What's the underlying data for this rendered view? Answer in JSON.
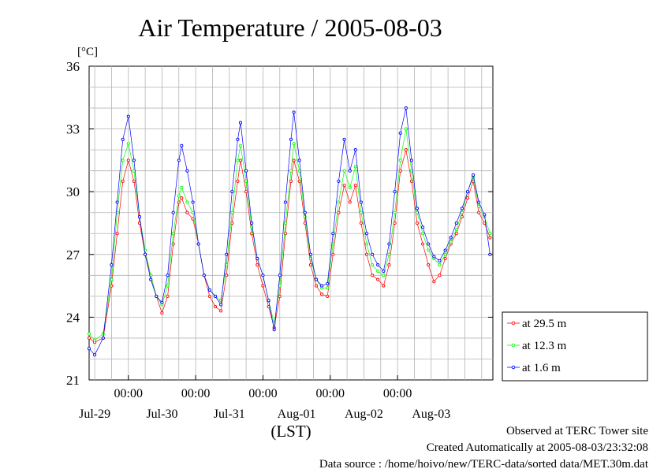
{
  "chart_data": {
    "type": "line",
    "title": "Air Temperature / 2005-08-03",
    "ylabel": "[°C]",
    "xlabel": "(LST)",
    "ylim": [
      21,
      36
    ],
    "yticks": [
      21,
      24,
      27,
      30,
      33,
      36
    ],
    "grid": true,
    "x_unit": "hours since 2005-07-28 00:00 LST",
    "xlim": [
      10,
      154
    ],
    "time_tick_labels": [
      "00:00",
      "00:00",
      "00:00",
      "00:00",
      "00:00"
    ],
    "time_ticks": [
      24,
      48,
      72,
      96,
      120
    ],
    "date_labels": [
      "Jul-29",
      "Jul-30",
      "Jul-31",
      "Aug-01",
      "Aug-02",
      "Aug-03"
    ],
    "date_label_positions": [
      12,
      12,
      12,
      12,
      12,
      12
    ],
    "legend_position": "right",
    "series": [
      {
        "name": "at 29.5 m",
        "color": "#ff0000",
        "points": [
          [
            10,
            23.0
          ],
          [
            12,
            22.8
          ],
          [
            15,
            23.0
          ],
          [
            18,
            25.5
          ],
          [
            20,
            28.0
          ],
          [
            22,
            30.5
          ],
          [
            24,
            31.5
          ],
          [
            26,
            30.5
          ],
          [
            28,
            28.5
          ],
          [
            30,
            27.0
          ],
          [
            32,
            26.0
          ],
          [
            34,
            25.0
          ],
          [
            36,
            24.2
          ],
          [
            38,
            25.0
          ],
          [
            40,
            27.5
          ],
          [
            42,
            29.5
          ],
          [
            43,
            29.7
          ],
          [
            45,
            29.0
          ],
          [
            47,
            28.7
          ],
          [
            49,
            27.5
          ],
          [
            51,
            26.0
          ],
          [
            53,
            25.0
          ],
          [
            55,
            24.5
          ],
          [
            57,
            24.3
          ],
          [
            59,
            26.0
          ],
          [
            61,
            28.5
          ],
          [
            63,
            30.5
          ],
          [
            64,
            31.5
          ],
          [
            66,
            30.0
          ],
          [
            68,
            28.0
          ],
          [
            70,
            26.5
          ],
          [
            72,
            25.5
          ],
          [
            74,
            24.5
          ],
          [
            76,
            23.5
          ],
          [
            78,
            25.0
          ],
          [
            80,
            28.0
          ],
          [
            82,
            30.5
          ],
          [
            83,
            31.5
          ],
          [
            85,
            30.5
          ],
          [
            87,
            28.5
          ],
          [
            89,
            26.5
          ],
          [
            91,
            25.5
          ],
          [
            93,
            25.1
          ],
          [
            95,
            25.0
          ],
          [
            97,
            27.0
          ],
          [
            99,
            29.0
          ],
          [
            101,
            30.3
          ],
          [
            103,
            29.5
          ],
          [
            105,
            30.3
          ],
          [
            107,
            28.5
          ],
          [
            109,
            27.0
          ],
          [
            111,
            26.0
          ],
          [
            113,
            25.8
          ],
          [
            115,
            25.5
          ],
          [
            117,
            26.5
          ],
          [
            119,
            28.5
          ],
          [
            121,
            31.0
          ],
          [
            123,
            32.0
          ],
          [
            125,
            30.5
          ],
          [
            127,
            28.5
          ],
          [
            129,
            27.5
          ],
          [
            131,
            26.5
          ],
          [
            133,
            25.7
          ],
          [
            135,
            26.0
          ],
          [
            137,
            26.8
          ],
          [
            139,
            27.5
          ],
          [
            141,
            28.0
          ],
          [
            143,
            28.8
          ],
          [
            145,
            29.7
          ],
          [
            147,
            30.5
          ],
          [
            149,
            29.0
          ],
          [
            151,
            28.5
          ],
          [
            153,
            27.8
          ]
        ]
      },
      {
        "name": "at 12.3 m",
        "color": "#00ff00",
        "points": [
          [
            10,
            23.2
          ],
          [
            12,
            22.9
          ],
          [
            15,
            23.2
          ],
          [
            18,
            25.8
          ],
          [
            20,
            29.0
          ],
          [
            22,
            31.5
          ],
          [
            24,
            32.3
          ],
          [
            26,
            31.0
          ],
          [
            28,
            28.8
          ],
          [
            30,
            27.2
          ],
          [
            32,
            26.0
          ],
          [
            34,
            25.0
          ],
          [
            36,
            24.6
          ],
          [
            38,
            25.5
          ],
          [
            40,
            28.0
          ],
          [
            42,
            29.8
          ],
          [
            43,
            30.2
          ],
          [
            45,
            29.5
          ],
          [
            47,
            29.0
          ],
          [
            49,
            27.5
          ],
          [
            51,
            26.0
          ],
          [
            53,
            25.3
          ],
          [
            55,
            25.0
          ],
          [
            57,
            24.8
          ],
          [
            59,
            26.5
          ],
          [
            61,
            29.0
          ],
          [
            63,
            31.5
          ],
          [
            64,
            32.2
          ],
          [
            66,
            30.5
          ],
          [
            68,
            28.3
          ],
          [
            70,
            26.8
          ],
          [
            72,
            26.0
          ],
          [
            74,
            24.8
          ],
          [
            76,
            23.7
          ],
          [
            78,
            25.5
          ],
          [
            80,
            28.5
          ],
          [
            82,
            31.0
          ],
          [
            83,
            32.3
          ],
          [
            85,
            31.0
          ],
          [
            87,
            28.8
          ],
          [
            89,
            26.8
          ],
          [
            91,
            25.8
          ],
          [
            93,
            25.4
          ],
          [
            95,
            25.4
          ],
          [
            97,
            27.5
          ],
          [
            99,
            29.5
          ],
          [
            101,
            31.0
          ],
          [
            103,
            30.2
          ],
          [
            105,
            31.2
          ],
          [
            107,
            29.0
          ],
          [
            109,
            27.5
          ],
          [
            111,
            26.5
          ],
          [
            113,
            26.2
          ],
          [
            115,
            26.0
          ],
          [
            117,
            27.0
          ],
          [
            119,
            29.0
          ],
          [
            121,
            31.5
          ],
          [
            123,
            33.0
          ],
          [
            125,
            31.0
          ],
          [
            127,
            29.0
          ],
          [
            129,
            28.0
          ],
          [
            131,
            27.2
          ],
          [
            133,
            26.8
          ],
          [
            135,
            26.5
          ],
          [
            137,
            27.0
          ],
          [
            139,
            27.6
          ],
          [
            141,
            28.2
          ],
          [
            143,
            29.0
          ],
          [
            145,
            30.0
          ],
          [
            147,
            30.7
          ],
          [
            149,
            29.3
          ],
          [
            151,
            28.8
          ],
          [
            153,
            28.0
          ]
        ]
      },
      {
        "name": "at 1.6 m",
        "color": "#0000ff",
        "points": [
          [
            10,
            22.5
          ],
          [
            12,
            22.2
          ],
          [
            15,
            23.0
          ],
          [
            18,
            26.5
          ],
          [
            20,
            29.5
          ],
          [
            22,
            32.5
          ],
          [
            24,
            33.6
          ],
          [
            26,
            31.5
          ],
          [
            28,
            28.8
          ],
          [
            30,
            27.0
          ],
          [
            32,
            25.8
          ],
          [
            34,
            25.0
          ],
          [
            36,
            24.7
          ],
          [
            38,
            26.0
          ],
          [
            40,
            29.0
          ],
          [
            42,
            31.5
          ],
          [
            43,
            32.2
          ],
          [
            45,
            31.0
          ],
          [
            47,
            29.5
          ],
          [
            49,
            27.5
          ],
          [
            51,
            26.0
          ],
          [
            53,
            25.3
          ],
          [
            55,
            25.0
          ],
          [
            57,
            24.6
          ],
          [
            59,
            27.0
          ],
          [
            61,
            30.0
          ],
          [
            63,
            32.5
          ],
          [
            64,
            33.3
          ],
          [
            66,
            31.0
          ],
          [
            68,
            28.5
          ],
          [
            70,
            26.8
          ],
          [
            72,
            26.0
          ],
          [
            74,
            24.8
          ],
          [
            76,
            23.4
          ],
          [
            78,
            26.0
          ],
          [
            80,
            29.5
          ],
          [
            82,
            32.5
          ],
          [
            83,
            33.8
          ],
          [
            85,
            31.5
          ],
          [
            87,
            29.0
          ],
          [
            89,
            27.0
          ],
          [
            91,
            25.8
          ],
          [
            93,
            25.5
          ],
          [
            95,
            25.6
          ],
          [
            97,
            28.0
          ],
          [
            99,
            30.5
          ],
          [
            101,
            32.5
          ],
          [
            103,
            31.0
          ],
          [
            105,
            32.0
          ],
          [
            107,
            29.5
          ],
          [
            109,
            28.0
          ],
          [
            111,
            27.0
          ],
          [
            113,
            26.5
          ],
          [
            115,
            26.2
          ],
          [
            117,
            27.5
          ],
          [
            119,
            30.0
          ],
          [
            121,
            32.8
          ],
          [
            123,
            34.0
          ],
          [
            125,
            31.5
          ],
          [
            127,
            29.2
          ],
          [
            129,
            28.3
          ],
          [
            131,
            27.5
          ],
          [
            133,
            26.9
          ],
          [
            135,
            26.7
          ],
          [
            137,
            27.2
          ],
          [
            139,
            27.8
          ],
          [
            141,
            28.5
          ],
          [
            143,
            29.2
          ],
          [
            145,
            30.0
          ],
          [
            147,
            30.8
          ],
          [
            149,
            29.5
          ],
          [
            151,
            28.9
          ],
          [
            153,
            27.0
          ]
        ]
      }
    ]
  },
  "footer": {
    "line1": "Observed at TERC Tower site",
    "line2": "Created Automatically at 2005-08-03/23:32:08",
    "line3": "Data source : /home/hoivo/new/TERC-data/sorted  data/MET.30m.dat"
  }
}
